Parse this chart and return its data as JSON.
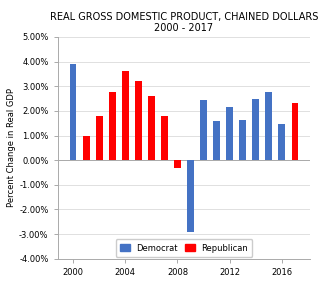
{
  "title_line1": "REAL GROSS DOMESTIC PRODUCT, CHAINED DOLLARS",
  "title_line2": "2000 - 2017",
  "years": [
    2000,
    2001,
    2002,
    2003,
    2004,
    2005,
    2006,
    2007,
    2008,
    2009,
    2010,
    2011,
    2012,
    2013,
    2014,
    2015,
    2016,
    2017
  ],
  "values": [
    0.039,
    0.01,
    0.018,
    0.0275,
    0.036,
    0.032,
    0.026,
    0.018,
    -0.003,
    -0.029,
    0.0245,
    0.016,
    0.0215,
    0.0165,
    0.025,
    0.0275,
    0.0145,
    0.023
  ],
  "party": [
    "D",
    "R",
    "R",
    "R",
    "R",
    "R",
    "R",
    "R",
    "R",
    "D",
    "D",
    "D",
    "D",
    "D",
    "D",
    "D",
    "D",
    "R"
  ],
  "colors": {
    "D": "#4472C4",
    "R": "#FF0000"
  },
  "ylabel": "Percent Change in Real GDP",
  "ylim_min": -0.04,
  "ylim_max": 0.05,
  "yticks": [
    -0.04,
    -0.03,
    -0.02,
    -0.01,
    0.0,
    0.01,
    0.02,
    0.03,
    0.04,
    0.05
  ],
  "xticks": [
    2000,
    2004,
    2008,
    2012,
    2016
  ],
  "legend_democrat": "Democrat",
  "legend_republican": "Republican",
  "background_color": "#FFFFFF",
  "title_fontsize": 7.0,
  "ylabel_fontsize": 6.0,
  "tick_fontsize": 6.0,
  "bar_width": 0.5
}
